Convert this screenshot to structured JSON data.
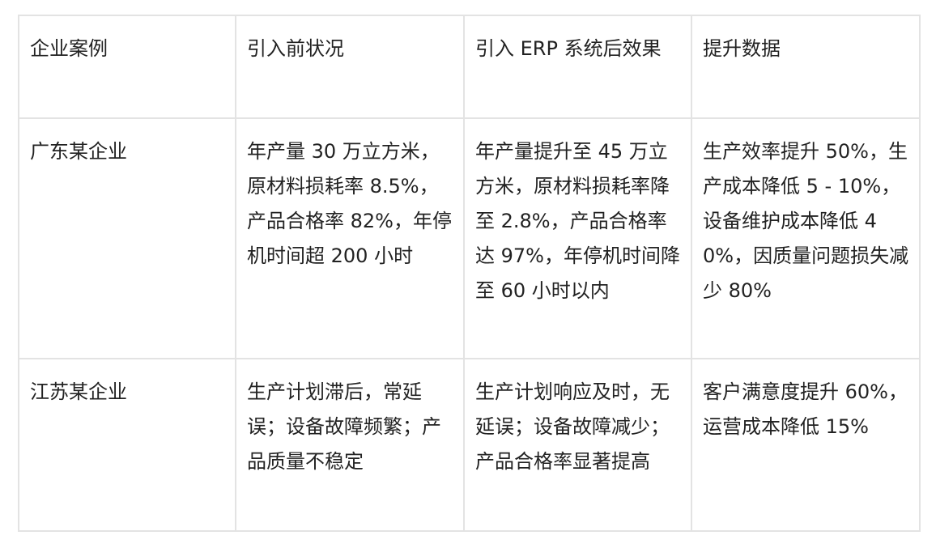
{
  "table": {
    "header": [
      "企业案例",
      "引入前状况",
      "引入 ERP 系统后效果",
      "提升数据"
    ],
    "rows": [
      [
        "广东某企业",
        "年产量 30 万立方米，原材料损耗率 8.5%，产品合格率 82%，年停机时间超 200 小时",
        "年产量提升至 45 万立方米，原材料损耗率降至 2.8%，产品合格率达 97%，年停机时间降至 60 小时以内",
        "生产效率提升 50%，生产成本降低 5 - 10%，设备维护成本降低 40%，因质量问题损失减少 80%"
      ],
      [
        "江苏某企业",
        "生产计划滞后，常延误；设备故障频繁；产品质量不稳定",
        "生产计划响应及时，无延误；设备故障减少；产品合格率显著提高",
        "客户满意度提升 60%，运营成本降低 15%"
      ]
    ]
  }
}
